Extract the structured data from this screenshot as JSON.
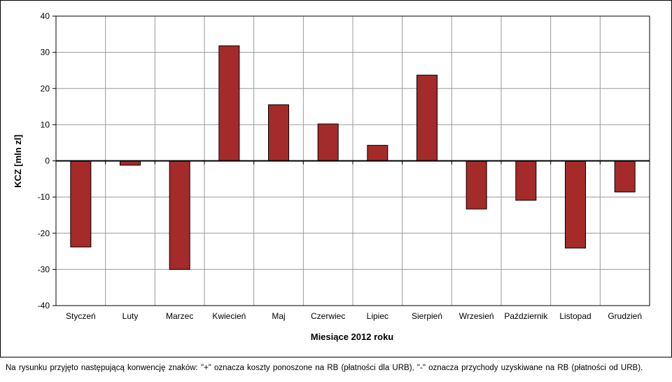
{
  "chart_data": {
    "type": "bar",
    "categories": [
      "Styczeń",
      "Luty",
      "Marzec",
      "Kwiecień",
      "Maj",
      "Czerwiec",
      "Lipiec",
      "Sierpień",
      "Wrzesień",
      "Październik",
      "Listopad",
      "Grudzień"
    ],
    "values": [
      -23.8,
      -1.2,
      -30.0,
      31.8,
      15.5,
      10.2,
      4.3,
      23.7,
      -13.3,
      -10.9,
      -24.1,
      -8.6
    ],
    "xlabel": "Miesiące 2012 roku",
    "ylabel": "KCZ [mln zl]",
    "ylim": [
      -40,
      40
    ],
    "yticks": [
      40,
      30,
      20,
      10,
      0,
      -10,
      -20,
      -30,
      -40
    ],
    "grid": true,
    "bar_color": "#A52A2A"
  },
  "footnote": "Na rysunku przyjęto następującą konwencję znaków: \"+\" oznacza koszty ponoszone na RB (płatności dla URB), \"-\" oznacza przychody uzyskiwane na RB (płatności od URB)."
}
